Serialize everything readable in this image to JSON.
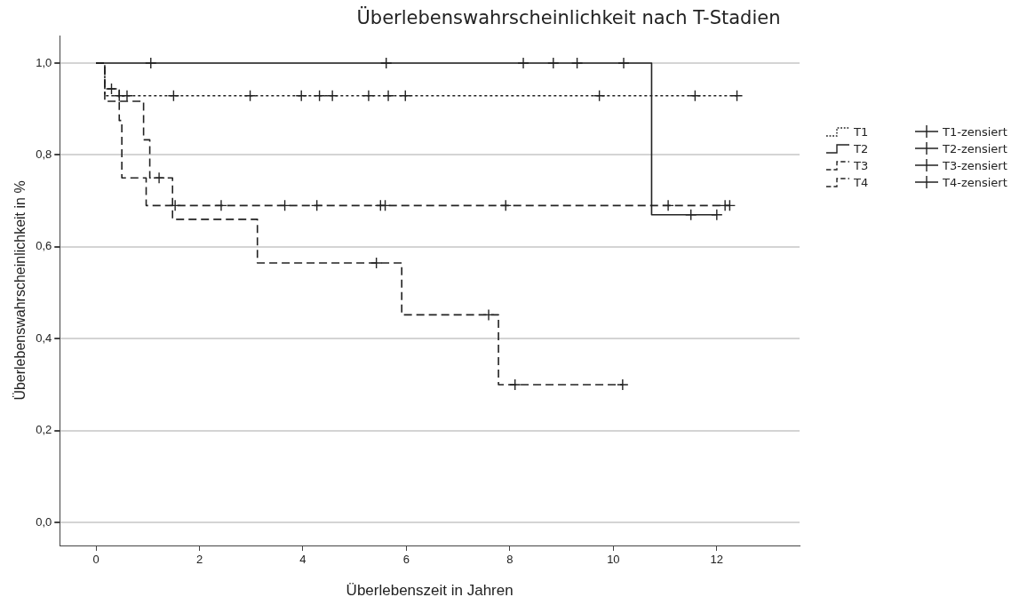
{
  "chart_data": {
    "type": "step",
    "title": "Überlebenswahrscheinlichkeit nach T-Stadien",
    "xlabel": "Überlebenszeit in Jahren",
    "ylabel": "Überlebenswahrscheinlichkeit in %",
    "xlim": [
      -0.7,
      13.6
    ],
    "xticks": [
      0,
      2,
      4,
      6,
      8,
      10,
      12
    ],
    "ylim": [
      -0.05,
      1.06
    ],
    "yticks": [
      {
        "value": 0,
        "label": "0,0"
      },
      {
        "value": 0.2,
        "label": "0,2"
      },
      {
        "value": 0.4,
        "label": "0,4"
      },
      {
        "value": 0.6,
        "label": "0,6"
      },
      {
        "value": 0.8,
        "label": "0,8"
      },
      {
        "value": 1,
        "label": "1,0"
      }
    ],
    "grid": "y",
    "legend": "right",
    "series": [
      {
        "name": "T1",
        "line_style": "dotted",
        "color": "#222222",
        "x": [
          0,
          0.17,
          12.39
        ],
        "values": [
          1,
          0.929,
          0.929
        ]
      },
      {
        "name": "T2",
        "line_style": "solid",
        "color": "#222222",
        "x": [
          0,
          10.74,
          12.0
        ],
        "values": [
          1,
          0.67,
          0.67
        ]
      },
      {
        "name": "T3",
        "line_style": "dashed",
        "color": "#222222",
        "x": [
          0,
          0.17,
          0.45,
          0.5,
          0.97,
          12.25
        ],
        "values": [
          1,
          0.944,
          0.875,
          0.75,
          0.69,
          0.69
        ]
      },
      {
        "name": "T4",
        "line_style": "dashed",
        "color": "#222222",
        "x": [
          0,
          0.17,
          0.92,
          1.04,
          1.48,
          3.12,
          5.91,
          7.78,
          10.18
        ],
        "values": [
          1,
          0.917,
          0.833,
          0.75,
          0.66,
          0.565,
          0.452,
          0.3,
          0.3
        ]
      },
      {
        "name": "T1-zensiert",
        "type": "scatter",
        "marker": "cross",
        "color": "#222222",
        "x": [
          0.45,
          0.6,
          1.5,
          2.98,
          3.97,
          4.32,
          4.57,
          5.27,
          5.65,
          5.98,
          9.73,
          11.58,
          12.39
        ],
        "values": [
          0.929,
          0.929,
          0.929,
          0.929,
          0.929,
          0.929,
          0.929,
          0.929,
          0.929,
          0.929,
          0.929,
          0.929,
          0.929
        ]
      },
      {
        "name": "T2-zensiert",
        "type": "scatter",
        "marker": "cross",
        "color": "#222222",
        "x": [
          1.06,
          5.61,
          8.26,
          8.84,
          9.3,
          10.2,
          11.5,
          12.0
        ],
        "values": [
          1,
          1,
          1,
          1,
          1,
          1,
          0.67,
          0.67
        ]
      },
      {
        "name": "T3-zensiert",
        "type": "scatter",
        "marker": "cross",
        "color": "#222222",
        "x": [
          0.3,
          1.53,
          2.42,
          3.65,
          4.27,
          5.5,
          5.59,
          7.92,
          11.06,
          12.16,
          12.25
        ],
        "values": [
          0.944,
          0.69,
          0.69,
          0.69,
          0.69,
          0.69,
          0.69,
          0.69,
          0.69,
          0.69,
          0.69
        ]
      },
      {
        "name": "T4-zensiert",
        "type": "scatter",
        "marker": "cross",
        "color": "#222222",
        "x": [
          1.22,
          5.42,
          7.59,
          8.1,
          10.18
        ],
        "values": [
          0.75,
          0.565,
          0.452,
          0.3,
          0.3
        ]
      }
    ]
  }
}
